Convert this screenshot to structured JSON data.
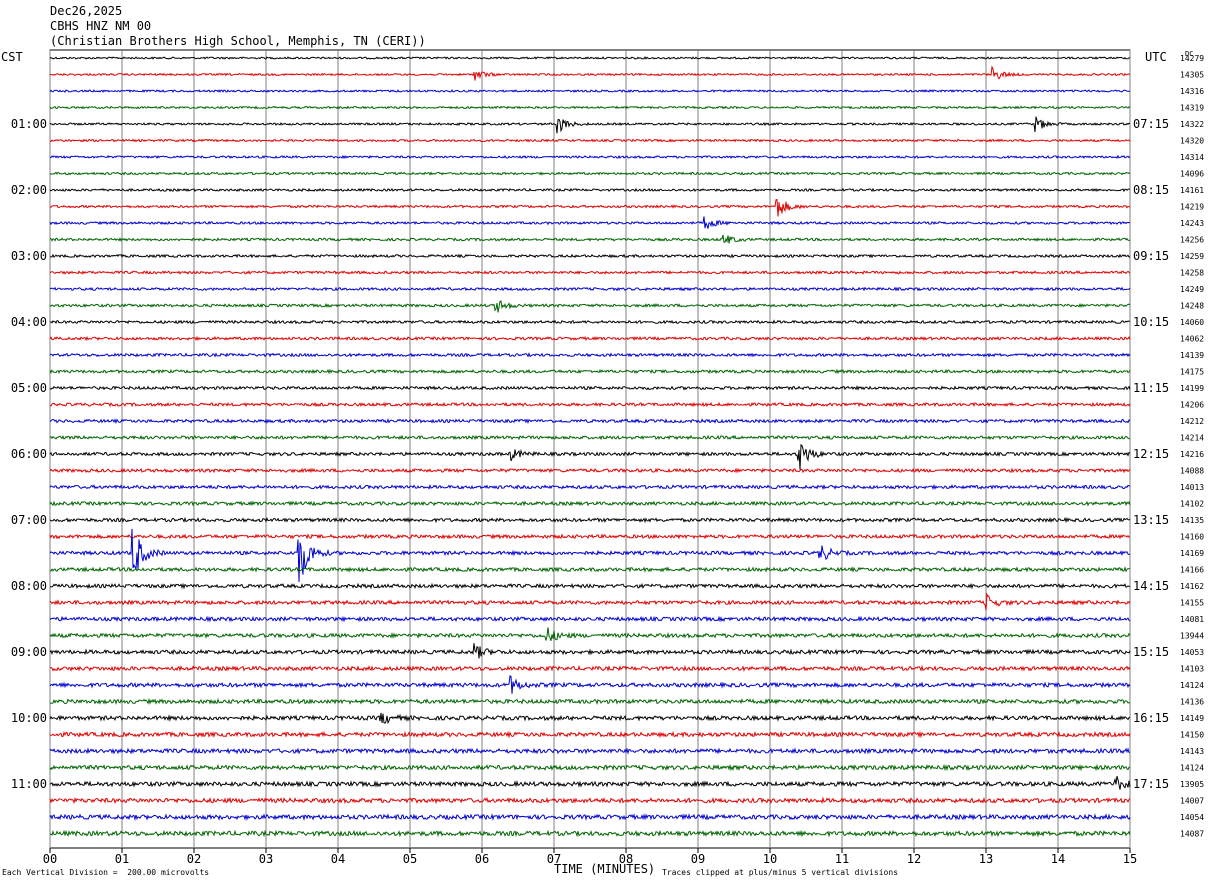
{
  "header": {
    "date": "Dec26,2025",
    "station": "CBHS HNZ NM 00",
    "location": "(Christian Brothers High School, Memphis, TN (CERI))"
  },
  "left_tz": "CST",
  "right_tz": "UTC",
  "dc_label": "DC",
  "footer": {
    "scale": "Each Vertical Division =  200.00 microvolts",
    "xlabel": "TIME (MINUTES)",
    "clip": "Traces clipped at plus/minus 5 vertical divisions"
  },
  "chart_data": {
    "type": "line",
    "title": "CBHS HNZ NM 00",
    "xlabel": "TIME (MINUTES)",
    "xlim": [
      0,
      15
    ],
    "x_ticks": [
      "00",
      "01",
      "02",
      "03",
      "04",
      "05",
      "06",
      "07",
      "08",
      "09",
      "10",
      "11",
      "12",
      "13",
      "14",
      "15"
    ],
    "left_hour_labels": [
      "01:00",
      "02:00",
      "03:00",
      "04:00",
      "05:00",
      "06:00",
      "07:00",
      "08:00",
      "09:00",
      "10:00",
      "11:00"
    ],
    "right_hour_labels": [
      "07:15",
      "08:15",
      "09:15",
      "10:15",
      "11:15",
      "12:15",
      "13:15",
      "14:15",
      "15:15",
      "16:15",
      "17:15"
    ],
    "trace_colors": [
      "#000000",
      "#e00000",
      "#0000d0",
      "#006400"
    ],
    "dc_offsets": [
      14279,
      14305,
      14316,
      14319,
      14322,
      14320,
      14314,
      14096,
      14161,
      14219,
      14243,
      14256,
      14259,
      14258,
      14249,
      14248,
      14060,
      14062,
      14139,
      14175,
      14199,
      14206,
      14212,
      14214,
      14216,
      14088,
      14013,
      14102,
      14135,
      14160,
      14169,
      14166,
      14162,
      14155,
      14081,
      13944,
      14053,
      14103,
      14124,
      14136,
      14149,
      14150,
      14143,
      14124,
      13905,
      14007,
      14054,
      14087
    ],
    "events": [
      {
        "trace": 1,
        "minute": 5.9,
        "amp": 1.0
      },
      {
        "trace": 1,
        "minute": 13.1,
        "amp": 1.2
      },
      {
        "trace": 4,
        "minute": 7.05,
        "amp": 1.6
      },
      {
        "trace": 4,
        "minute": 13.7,
        "amp": 1.2
      },
      {
        "trace": 9,
        "minute": 10.1,
        "amp": 2.0
      },
      {
        "trace": 10,
        "minute": 9.1,
        "amp": 1.1
      },
      {
        "trace": 11,
        "minute": 9.35,
        "amp": 1.0
      },
      {
        "trace": 15,
        "minute": 6.2,
        "amp": 1.2
      },
      {
        "trace": 24,
        "minute": 6.4,
        "amp": 1.0
      },
      {
        "trace": 24,
        "minute": 10.4,
        "amp": 3.0
      },
      {
        "trace": 30,
        "minute": 1.15,
        "amp": 5.0
      },
      {
        "trace": 30,
        "minute": 3.45,
        "amp": 6.0
      },
      {
        "trace": 30,
        "minute": 10.7,
        "amp": 1.5
      },
      {
        "trace": 33,
        "minute": 13.0,
        "amp": 1.3
      },
      {
        "trace": 35,
        "minute": 6.9,
        "amp": 1.4
      },
      {
        "trace": 36,
        "minute": 5.9,
        "amp": 1.3
      },
      {
        "trace": 38,
        "minute": 6.4,
        "amp": 1.4
      },
      {
        "trace": 40,
        "minute": 4.6,
        "amp": 1.1
      },
      {
        "trace": 44,
        "minute": 14.8,
        "amp": 1.3
      }
    ]
  }
}
